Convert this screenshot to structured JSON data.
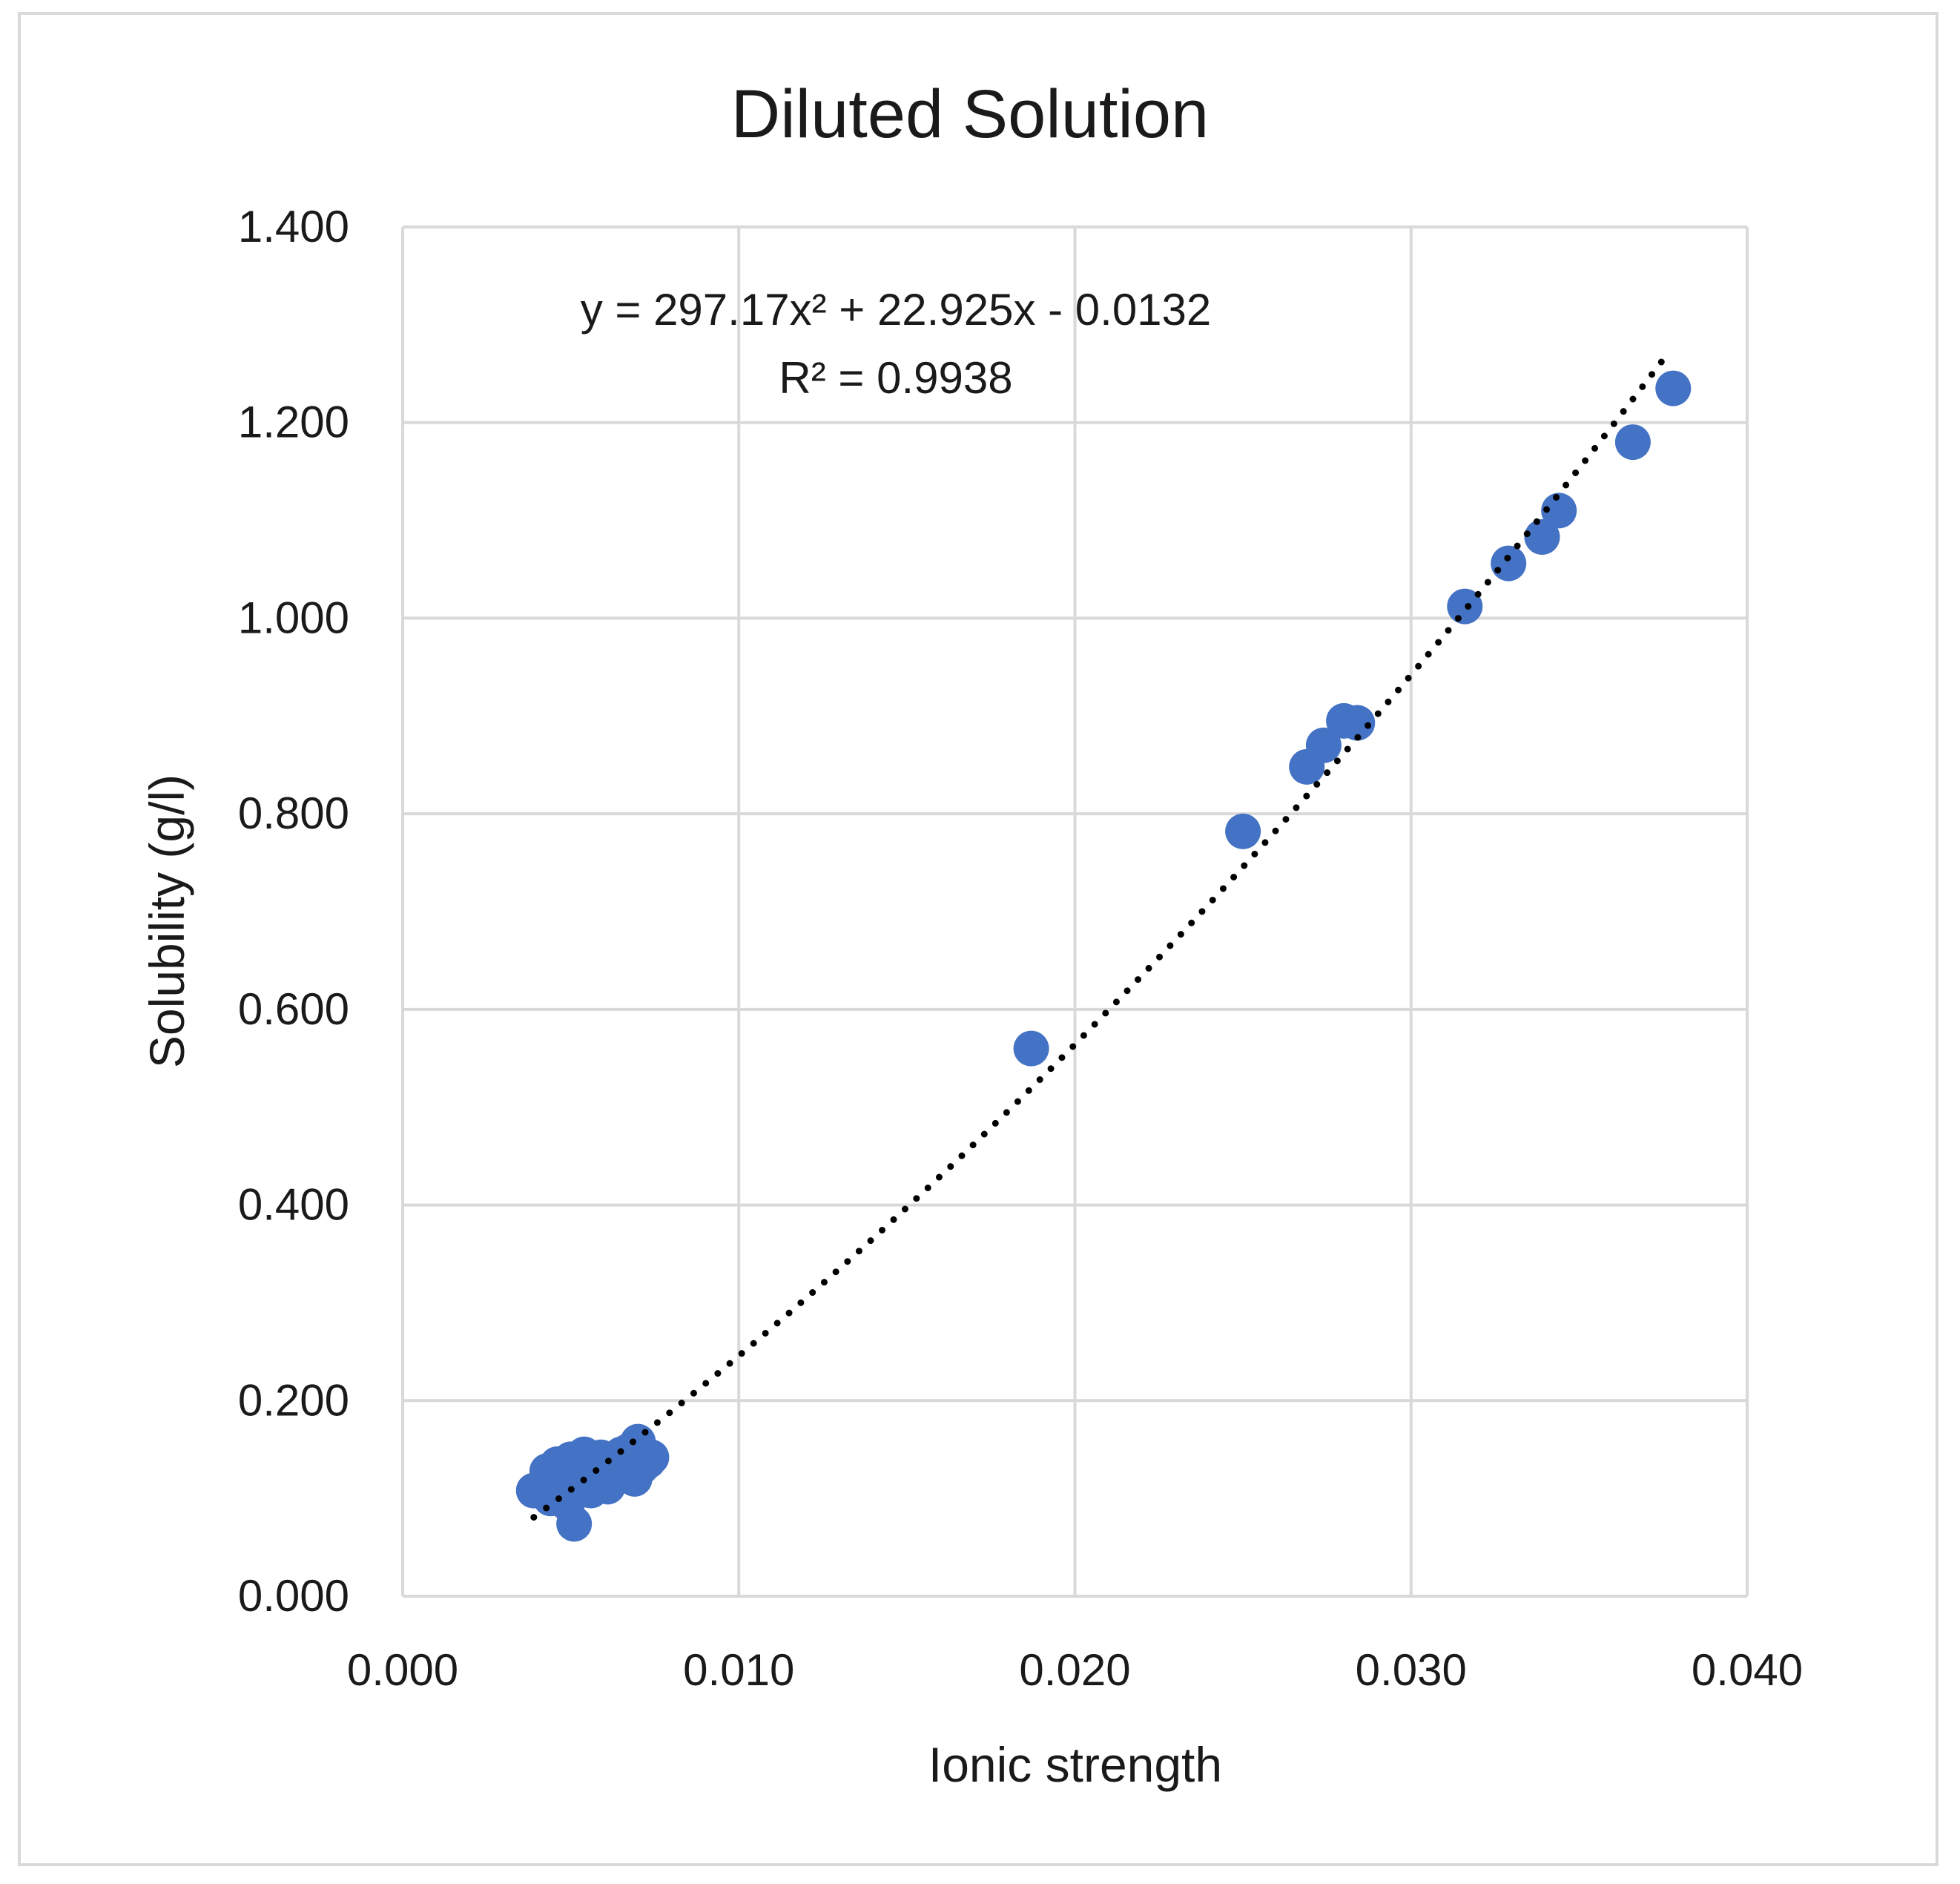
{
  "chart_data": {
    "type": "scatter",
    "title": "Diluted Solution",
    "xlabel": "Ionic strength",
    "ylabel": "Solubility (g/l)",
    "xlim": [
      0,
      0.04
    ],
    "ylim": [
      0,
      1.4
    ],
    "xticks": [
      "0.000",
      "0.010",
      "0.020",
      "0.030",
      "0.040"
    ],
    "yticks": [
      "0.000",
      "0.200",
      "0.400",
      "0.600",
      "0.800",
      "1.000",
      "1.200",
      "1.400"
    ],
    "grid": true,
    "marker_color": "#4472C4",
    "trendline": {
      "type": "polynomial-2",
      "coefficients": [
        297.17,
        22.925,
        -0.0132
      ],
      "x_range": [
        0.0039,
        0.0377
      ],
      "color": "#000000",
      "style": "dotted",
      "equation_label": "y = 297.17x² + 22.925x - 0.0132",
      "r2_label": "R² = 0.9938"
    },
    "series": [
      {
        "points": [
          [
            0.0039,
            0.108
          ],
          [
            0.0042,
            0.115
          ],
          [
            0.0043,
            0.128
          ],
          [
            0.0044,
            0.1
          ],
          [
            0.0045,
            0.12
          ],
          [
            0.0046,
            0.135
          ],
          [
            0.0047,
            0.11
          ],
          [
            0.0048,
            0.125
          ],
          [
            0.0049,
            0.095
          ],
          [
            0.005,
            0.14
          ],
          [
            0.005,
            0.118
          ],
          [
            0.0051,
            0.074
          ],
          [
            0.0052,
            0.13
          ],
          [
            0.0053,
            0.112
          ],
          [
            0.0054,
            0.145
          ],
          [
            0.0055,
            0.125
          ],
          [
            0.0056,
            0.108
          ],
          [
            0.0057,
            0.138
          ],
          [
            0.0058,
            0.118
          ],
          [
            0.0059,
            0.142
          ],
          [
            0.006,
            0.128
          ],
          [
            0.0061,
            0.112
          ],
          [
            0.0062,
            0.135
          ],
          [
            0.0063,
            0.14
          ],
          [
            0.0064,
            0.125
          ],
          [
            0.0065,
            0.145
          ],
          [
            0.0066,
            0.13
          ],
          [
            0.0067,
            0.148
          ],
          [
            0.0068,
            0.138
          ],
          [
            0.0069,
            0.12
          ],
          [
            0.007,
            0.158
          ],
          [
            0.0071,
            0.132
          ],
          [
            0.0072,
            0.145
          ],
          [
            0.0073,
            0.138
          ],
          [
            0.0074,
            0.142
          ],
          [
            0.0187,
            0.56
          ],
          [
            0.025,
            0.782
          ],
          [
            0.0269,
            0.848
          ],
          [
            0.0274,
            0.87
          ],
          [
            0.028,
            0.895
          ],
          [
            0.0284,
            0.893
          ],
          [
            0.0316,
            1.012
          ],
          [
            0.0329,
            1.056
          ],
          [
            0.0339,
            1.083
          ],
          [
            0.0344,
            1.11
          ],
          [
            0.0366,
            1.18
          ],
          [
            0.0378,
            1.235
          ]
        ]
      }
    ]
  }
}
